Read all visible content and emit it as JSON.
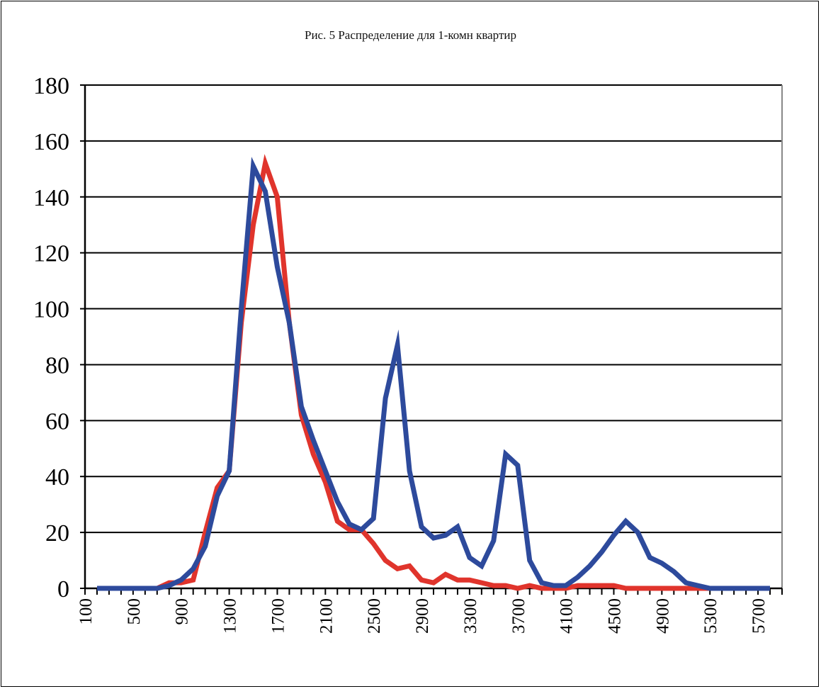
{
  "chart_data": {
    "type": "line",
    "title": "Рис. 5 Распределение для 1-комн квартир",
    "xlabel": "",
    "ylabel": "",
    "ylim": [
      0,
      180
    ],
    "xlim": [
      100,
      5900
    ],
    "yticks": [
      "0",
      "20",
      "40",
      "60",
      "80",
      "100",
      "120",
      "140",
      "160",
      "180"
    ],
    "xticks": [
      "100",
      "500",
      "900",
      "1300",
      "1700",
      "2100",
      "2500",
      "2900",
      "3300",
      "3700",
      "4100",
      "4500",
      "4900",
      "5300",
      "5700"
    ],
    "grid": true,
    "legend": "none",
    "x": [
      200,
      300,
      400,
      500,
      600,
      700,
      800,
      900,
      1000,
      1100,
      1200,
      1300,
      1400,
      1500,
      1600,
      1700,
      1800,
      1900,
      2000,
      2100,
      2200,
      2300,
      2400,
      2500,
      2600,
      2700,
      2800,
      2900,
      3000,
      3100,
      3200,
      3300,
      3400,
      3500,
      3600,
      3700,
      3800,
      3900,
      4000,
      4100,
      4200,
      4300,
      4400,
      4500,
      4600,
      4700,
      4800,
      4900,
      5000,
      5100,
      5200,
      5300,
      5400,
      5500,
      5600,
      5700,
      5800
    ],
    "series": [
      {
        "color": "#e0342c",
        "values": [
          0,
          0,
          0,
          0,
          0,
          0,
          2,
          2,
          3,
          20,
          36,
          42,
          95,
          130,
          152,
          140,
          95,
          62,
          48,
          38,
          24,
          21,
          21,
          16,
          10,
          7,
          8,
          3,
          2,
          5,
          3,
          3,
          2,
          1,
          1,
          0,
          1,
          0,
          0,
          0,
          1,
          1,
          1,
          1,
          0,
          0,
          0,
          0,
          0,
          0,
          0,
          0,
          0,
          0,
          0,
          0,
          0
        ]
      },
      {
        "color": "#2d4a9c",
        "values": [
          0,
          0,
          0,
          0,
          0,
          0,
          1,
          3,
          7,
          15,
          33,
          42,
          100,
          151,
          142,
          115,
          95,
          65,
          53,
          42,
          31,
          23,
          21,
          25,
          68,
          87,
          42,
          22,
          18,
          19,
          22,
          11,
          8,
          17,
          48,
          44,
          10,
          2,
          1,
          1,
          4,
          8,
          13,
          19,
          24,
          20,
          11,
          9,
          6,
          2,
          1,
          0,
          0,
          0,
          0,
          0,
          0
        ]
      }
    ]
  }
}
